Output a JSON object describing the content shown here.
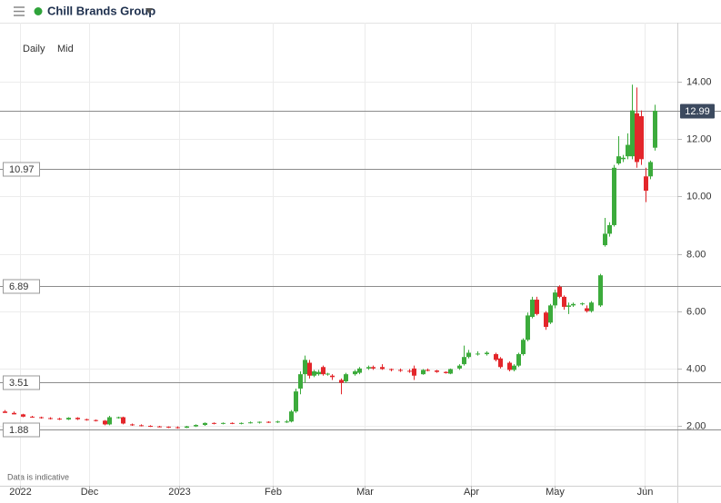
{
  "chart_data": {
    "type": "candlestick",
    "title": "Chill Brands Group",
    "interval": "Daily",
    "price_type": "Mid",
    "note": "Data is indicative",
    "up_color": "#3cab3c",
    "down_color": "#e3262b",
    "grid": true,
    "xlim": [
      0,
      149
    ],
    "xticks": [
      {
        "value": 4.4,
        "label": "2022"
      },
      {
        "value": 19.6,
        "label": "Dec"
      },
      {
        "value": 39.4,
        "label": "2023"
      },
      {
        "value": 60,
        "label": "Feb"
      },
      {
        "value": 80.2,
        "label": "Mar"
      },
      {
        "value": 103.6,
        "label": "Apr"
      },
      {
        "value": 122,
        "label": "May"
      },
      {
        "value": 141.8,
        "label": "Jun"
      }
    ],
    "ylim": [
      -0.09,
      16.06
    ],
    "yticks": [
      {
        "value": 2,
        "label": "2.00"
      },
      {
        "value": 4,
        "label": "4.00"
      },
      {
        "value": 6,
        "label": "6.00"
      },
      {
        "value": 8,
        "label": "8.00"
      },
      {
        "value": 10,
        "label": "10.00"
      },
      {
        "value": 12,
        "label": "12.00"
      },
      {
        "value": 14,
        "label": "14.00"
      }
    ],
    "price_lines": [
      10.97,
      6.89,
      3.51,
      1.88
    ],
    "last_price": 12.99,
    "x": [
      1,
      3,
      5,
      7,
      9,
      11,
      13,
      15,
      17,
      19,
      21,
      23,
      24,
      26,
      27,
      29,
      31,
      33,
      35,
      37,
      39,
      41,
      43,
      45,
      47,
      49,
      51,
      53,
      55,
      57,
      59,
      61,
      63,
      64,
      65,
      66,
      67,
      68,
      69,
      70,
      71,
      72,
      73,
      75,
      76,
      78,
      79,
      81,
      82,
      84,
      86,
      88,
      90,
      91,
      93,
      94,
      96,
      98,
      99,
      101,
      102,
      103,
      105,
      107,
      109,
      110,
      112,
      113,
      114,
      115,
      116,
      117,
      118,
      120,
      121,
      122,
      123,
      124,
      125,
      126,
      128,
      129,
      130,
      132,
      133,
      134,
      135,
      136,
      137,
      138,
      139,
      140,
      141,
      142,
      143,
      144
    ],
    "open": [
      2.5,
      2.45,
      2.4,
      2.32,
      2.3,
      2.27,
      2.25,
      2.22,
      2.28,
      2.23,
      2.2,
      2.18,
      2.05,
      2.3,
      2.3,
      2.05,
      2.02,
      2.0,
      1.98,
      1.97,
      1.95,
      1.93,
      1.98,
      2.03,
      2.1,
      2.08,
      2.1,
      2.08,
      2.1,
      2.12,
      2.14,
      2.13,
      2.13,
      2.15,
      2.5,
      3.3,
      3.8,
      4.2,
      3.75,
      3.8,
      4.05,
      3.8,
      3.75,
      3.6,
      3.55,
      3.8,
      3.85,
      4.0,
      4.05,
      4.05,
      3.98,
      3.95,
      3.92,
      4.0,
      3.8,
      3.95,
      3.93,
      3.88,
      3.82,
      4.0,
      4.15,
      4.4,
      4.5,
      4.5,
      4.5,
      4.35,
      4.2,
      3.95,
      4.1,
      4.5,
      5.0,
      5.8,
      6.4,
      5.95,
      5.6,
      6.2,
      6.85,
      6.5,
      6.15,
      6.2,
      6.25,
      6.1,
      6.0,
      6.2,
      8.3,
      8.7,
      9.0,
      11.15,
      11.3,
      11.4,
      11.4,
      12.9,
      12.8,
      10.7,
      10.7,
      11.7
    ],
    "high": [
      2.55,
      2.5,
      2.42,
      2.35,
      2.32,
      2.3,
      2.28,
      2.3,
      2.3,
      2.25,
      2.22,
      2.2,
      2.35,
      2.32,
      2.32,
      2.08,
      2.05,
      2.02,
      2.0,
      1.98,
      1.98,
      2.0,
      2.05,
      2.12,
      2.12,
      2.12,
      2.12,
      2.12,
      2.15,
      2.15,
      2.16,
      2.18,
      2.2,
      2.55,
      3.3,
      3.9,
      4.45,
      4.3,
      3.95,
      3.95,
      4.1,
      3.85,
      3.8,
      3.65,
      3.85,
      3.95,
      4.05,
      4.1,
      4.1,
      4.15,
      4.0,
      4.0,
      3.98,
      4.1,
      3.98,
      4.0,
      3.95,
      3.9,
      4.0,
      4.15,
      4.8,
      4.65,
      4.6,
      4.6,
      4.55,
      4.4,
      4.25,
      4.15,
      4.55,
      5.05,
      5.95,
      6.5,
      6.5,
      6.0,
      6.25,
      6.75,
      6.9,
      6.55,
      6.3,
      6.3,
      6.3,
      6.2,
      6.35,
      7.3,
      9.25,
      9.1,
      11.1,
      12.1,
      11.45,
      12.2,
      13.9,
      13.8,
      13.0,
      11.0,
      11.25,
      13.2
    ],
    "low": [
      2.45,
      2.4,
      2.3,
      2.28,
      2.25,
      2.22,
      2.2,
      2.2,
      2.2,
      2.18,
      2.15,
      2.02,
      2.02,
      2.25,
      2.05,
      2.0,
      1.98,
      1.96,
      1.95,
      1.92,
      1.9,
      1.92,
      1.96,
      2.0,
      2.05,
      2.05,
      2.06,
      2.05,
      2.08,
      2.08,
      2.1,
      2.1,
      2.1,
      2.12,
      2.45,
      3.1,
      3.5,
      3.65,
      3.7,
      3.75,
      3.75,
      3.75,
      3.6,
      3.1,
      3.5,
      3.75,
      3.8,
      3.95,
      3.95,
      3.95,
      3.9,
      3.88,
      3.85,
      3.6,
      3.78,
      3.9,
      3.85,
      3.82,
      3.8,
      3.95,
      4.1,
      4.35,
      4.45,
      4.45,
      4.25,
      4.0,
      3.9,
      3.9,
      4.05,
      4.45,
      4.95,
      5.75,
      5.85,
      5.35,
      5.55,
      6.1,
      6.45,
      6.05,
      5.9,
      6.15,
      6.2,
      5.95,
      5.95,
      6.15,
      8.25,
      8.6,
      8.95,
      11.1,
      11.2,
      11.3,
      11.3,
      11.0,
      11.1,
      9.8,
      10.6,
      11.6
    ],
    "close": [
      2.45,
      2.4,
      2.32,
      2.3,
      2.27,
      2.25,
      2.22,
      2.28,
      2.23,
      2.2,
      2.18,
      2.05,
      2.3,
      2.3,
      2.08,
      2.02,
      2.0,
      1.98,
      1.97,
      1.95,
      1.93,
      1.98,
      2.03,
      2.1,
      2.08,
      2.1,
      2.08,
      2.1,
      2.12,
      2.14,
      2.13,
      2.15,
      2.15,
      2.5,
      3.2,
      3.8,
      4.3,
      3.75,
      3.9,
      3.88,
      3.8,
      3.82,
      3.7,
      3.5,
      3.8,
      3.9,
      4.0,
      4.05,
      4.0,
      3.98,
      3.95,
      3.92,
      3.9,
      3.75,
      3.95,
      3.93,
      3.88,
      3.84,
      3.98,
      4.1,
      4.4,
      4.55,
      4.52,
      4.55,
      4.3,
      4.05,
      3.95,
      4.1,
      4.5,
      5.0,
      5.85,
      6.4,
      5.9,
      5.45,
      6.2,
      6.65,
      6.5,
      6.15,
      6.2,
      6.25,
      6.27,
      6.0,
      6.3,
      7.25,
      8.7,
      9.0,
      11.0,
      11.4,
      11.35,
      11.8,
      13.0,
      11.2,
      11.3,
      10.2,
      11.2,
      12.99
    ]
  }
}
